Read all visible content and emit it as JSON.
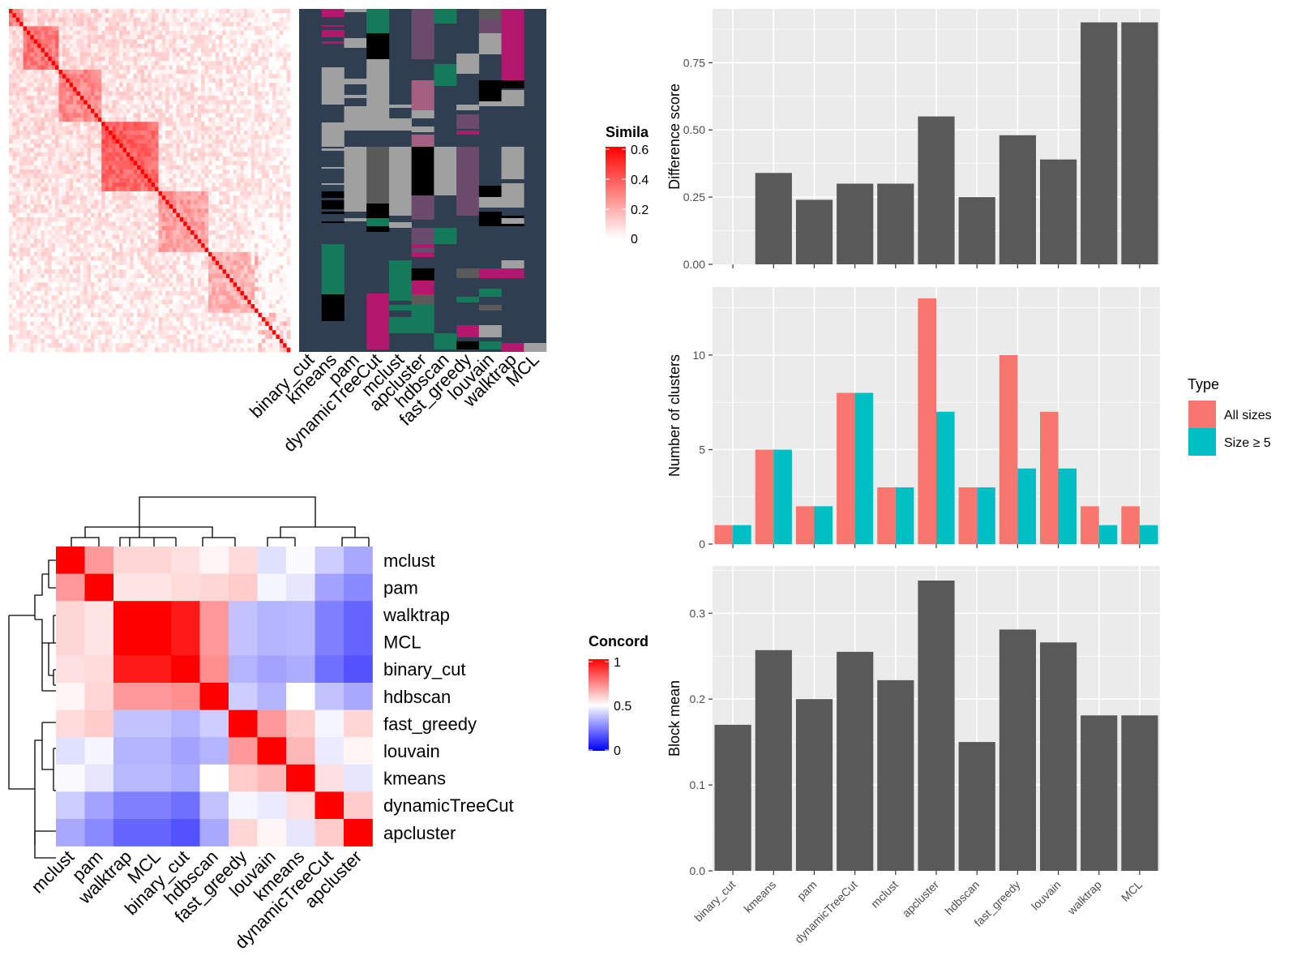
{
  "colors": {
    "panel_bg": "#ebebeb",
    "grid": "#ffffff",
    "bar_grey": "#595959",
    "all_sizes": "#f8766d",
    "size_ge5": "#00bfc4",
    "heat_high": "#ff0000",
    "heat_mid": "#ffffff",
    "heat_low": "#0000ff",
    "track_bg": "#2f3e50",
    "track_light": "#a0a0a0",
    "track_green": "#147a5a",
    "track_magenta": "#b3176e",
    "track_black": "#000000"
  },
  "similarity_legend": {
    "title": "Similarity",
    "ticks": [
      "0.6",
      "0.4",
      "0.2",
      "0"
    ]
  },
  "concordance_legend": {
    "title": "Concordance",
    "ticks": [
      "1",
      "0.5",
      "0"
    ]
  },
  "track_columns": [
    "binary_cut",
    "kmeans",
    "pam",
    "dynamicTreeCut",
    "mclust",
    "apcluster",
    "hdbscan",
    "fast_greedy",
    "louvain",
    "walktrap",
    "MCL"
  ],
  "chart_data": [
    {
      "type": "heatmap",
      "name": "concordance",
      "rows": [
        "mclust",
        "pam",
        "walktrap",
        "MCL",
        "binary_cut",
        "hdbscan",
        "fast_greedy",
        "louvain",
        "kmeans",
        "dynamicTreeCut",
        "apcluster"
      ],
      "cols": [
        "mclust",
        "pam",
        "walktrap",
        "MCL",
        "binary_cut",
        "hdbscan",
        "fast_greedy",
        "louvain",
        "kmeans",
        "dynamicTreeCut",
        "apcluster"
      ],
      "values": [
        [
          1.0,
          0.7,
          0.58,
          0.58,
          0.56,
          0.52,
          0.57,
          0.44,
          0.49,
          0.4,
          0.33
        ],
        [
          0.7,
          1.0,
          0.55,
          0.55,
          0.57,
          0.58,
          0.6,
          0.48,
          0.45,
          0.32,
          0.27
        ],
        [
          0.58,
          0.55,
          1.0,
          1.0,
          0.95,
          0.7,
          0.38,
          0.35,
          0.36,
          0.25,
          0.2
        ],
        [
          0.58,
          0.55,
          1.0,
          1.0,
          0.95,
          0.7,
          0.38,
          0.35,
          0.36,
          0.25,
          0.2
        ],
        [
          0.56,
          0.57,
          0.95,
          0.95,
          1.0,
          0.72,
          0.35,
          0.32,
          0.34,
          0.22,
          0.16
        ],
        [
          0.52,
          0.58,
          0.7,
          0.7,
          0.72,
          1.0,
          0.4,
          0.35,
          0.5,
          0.38,
          0.33
        ],
        [
          0.57,
          0.6,
          0.38,
          0.38,
          0.35,
          0.4,
          1.0,
          0.7,
          0.6,
          0.48,
          0.58
        ],
        [
          0.44,
          0.48,
          0.35,
          0.35,
          0.32,
          0.35,
          0.7,
          1.0,
          0.64,
          0.46,
          0.52
        ],
        [
          0.49,
          0.45,
          0.36,
          0.36,
          0.34,
          0.5,
          0.6,
          0.64,
          1.0,
          0.56,
          0.45
        ],
        [
          0.4,
          0.32,
          0.25,
          0.25,
          0.22,
          0.38,
          0.48,
          0.46,
          0.56,
          1.0,
          0.6
        ],
        [
          0.33,
          0.27,
          0.2,
          0.2,
          0.16,
          0.33,
          0.58,
          0.52,
          0.45,
          0.6,
          1.0
        ]
      ]
    },
    {
      "type": "bar",
      "name": "difference_score",
      "ylabel": "Difference score",
      "categories": [
        "binary_cut",
        "kmeans",
        "pam",
        "dynamicTreeCut",
        "mclust",
        "apcluster",
        "hdbscan",
        "fast_greedy",
        "louvain",
        "walktrap",
        "MCL"
      ],
      "values": [
        0.0,
        0.34,
        0.24,
        0.3,
        0.3,
        0.55,
        0.25,
        0.48,
        0.39,
        0.9,
        0.9
      ],
      "ylim": [
        0,
        0.95
      ],
      "yticks": [
        "0.00",
        "0.25",
        "0.50",
        "0.75"
      ]
    },
    {
      "type": "bar",
      "name": "number_of_clusters",
      "ylabel": "Number of clusters",
      "categories": [
        "binary_cut",
        "kmeans",
        "pam",
        "dynamicTreeCut",
        "mclust",
        "apcluster",
        "hdbscan",
        "fast_greedy",
        "louvain",
        "walktrap",
        "MCL"
      ],
      "series": [
        {
          "name": "All sizes",
          "values": [
            1,
            5,
            2,
            8,
            3,
            13,
            3,
            10,
            7,
            2,
            2
          ]
        },
        {
          "name": "Size ≥ 5",
          "values": [
            1,
            5,
            2,
            8,
            3,
            7,
            3,
            4,
            4,
            1,
            1
          ]
        }
      ],
      "ylim": [
        0,
        13.6
      ],
      "yticks": [
        "0",
        "5",
        "10"
      ],
      "legend_title": "Type",
      "legend_position": "right"
    },
    {
      "type": "bar",
      "name": "block_mean",
      "ylabel": "Block mean",
      "categories": [
        "binary_cut",
        "kmeans",
        "pam",
        "dynamicTreeCut",
        "mclust",
        "apcluster",
        "hdbscan",
        "fast_greedy",
        "louvain",
        "walktrap",
        "MCL"
      ],
      "values": [
        0.17,
        0.257,
        0.2,
        0.255,
        0.222,
        0.338,
        0.15,
        0.281,
        0.266,
        0.181,
        0.181
      ],
      "ylim": [
        0,
        0.355
      ],
      "yticks": [
        "0.0",
        "0.1",
        "0.2",
        "0.3"
      ]
    }
  ]
}
